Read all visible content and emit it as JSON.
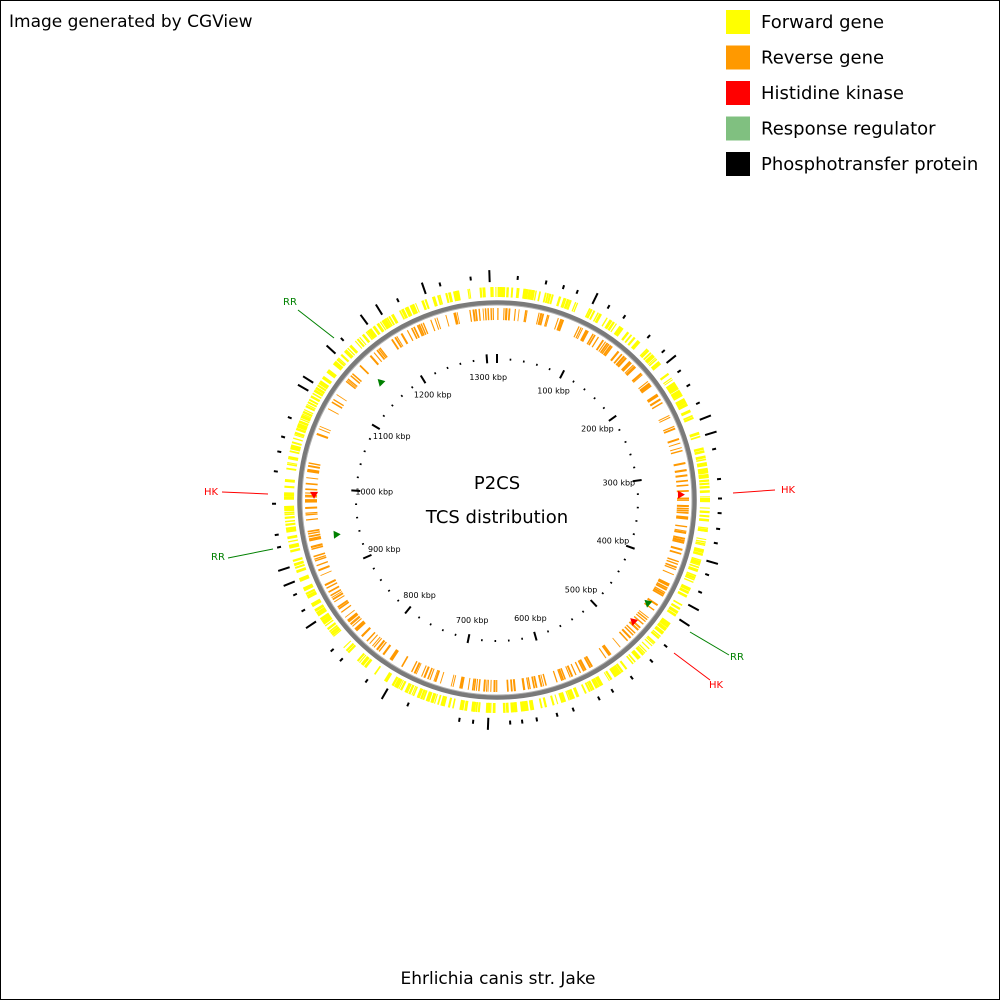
{
  "header": {
    "credit": "Image generated by CGView"
  },
  "legend": [
    {
      "label": "Forward gene",
      "color": "#ffff00"
    },
    {
      "label": "Reverse gene",
      "color": "#ff9900"
    },
    {
      "label": "Histidine kinase",
      "color": "#ff0000"
    },
    {
      "label": "Response regulator",
      "color": "#80c080"
    },
    {
      "label": "Phosphotransfer protein",
      "color": "#000000"
    }
  ],
  "map": {
    "title": "P2CS",
    "subtitle": "TCS distribution",
    "scale_labels": [
      "100 kbp",
      "200 kbp",
      "300 kbp",
      "400 kbp",
      "500 kbp",
      "600 kbp",
      "700 kbp",
      "800 kbp",
      "900 kbp",
      "1000 kbp",
      "1100 kbp",
      "1200 kbp",
      "1300 kbp"
    ],
    "features": [
      {
        "label": "HK",
        "color": "#ff0000"
      },
      {
        "label": "HK",
        "color": "#ff0000"
      },
      {
        "label": "HK",
        "color": "#ff0000"
      },
      {
        "label": "RR",
        "color": "#008000"
      },
      {
        "label": "RR",
        "color": "#008000"
      },
      {
        "label": "RR",
        "color": "#008000"
      }
    ]
  },
  "footer": {
    "organism": "Ehrlichia canis str. Jake"
  }
}
